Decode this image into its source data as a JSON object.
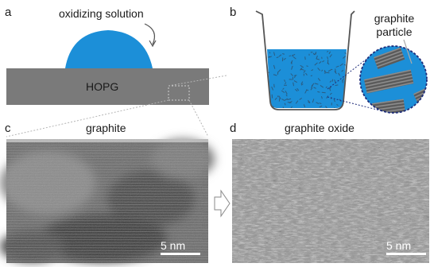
{
  "figure": {
    "panel_a": {
      "letter": "a",
      "solution_label": "oxidizing solution",
      "substrate_label": "HOPG"
    },
    "panel_b": {
      "letter": "b",
      "particle_label_line1": "graphite",
      "particle_label_line2": "particle"
    },
    "panel_c": {
      "letter": "c",
      "title": "graphite",
      "scale_bar": "5 nm"
    },
    "panel_d": {
      "letter": "d",
      "title": "graphite oxide",
      "scale_bar": "5 nm"
    },
    "colors": {
      "solution_blue": "#1c8fd8",
      "substrate_gray": "#7a7a7a",
      "zoom_circle_outline": "#1f2d7a",
      "dotted_guides": "#9a9a9a",
      "particles": "#3b3b3b"
    },
    "icons": [
      "arrow-right-outline-icon",
      "curved-pointer-arrow-icon"
    ]
  }
}
